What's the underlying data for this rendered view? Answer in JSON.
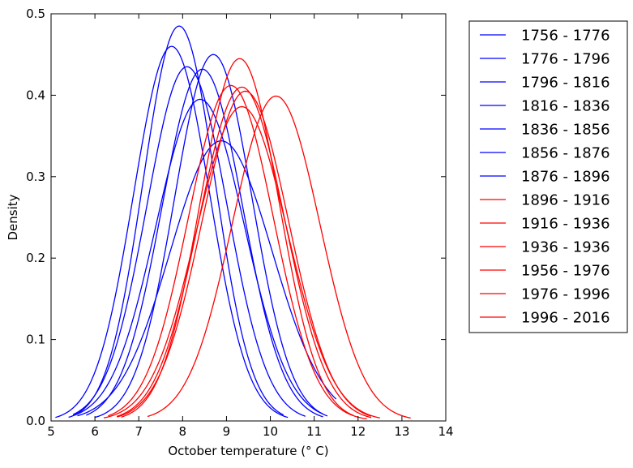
{
  "chart_data": {
    "type": "line",
    "xlabel": "October temperature (° C)",
    "ylabel": "Density",
    "xlim": [
      5,
      14
    ],
    "ylim": [
      0,
      0.5
    ],
    "xticks": [
      "5",
      "6",
      "7",
      "8",
      "9",
      "10",
      "11",
      "12",
      "13",
      "14"
    ],
    "yticks": [
      "0.0",
      "0.1",
      "0.2",
      "0.3",
      "0.4",
      "0.5"
    ],
    "grid": false,
    "legend_position": "outside-right",
    "colors": {
      "early": "#0000ff",
      "late": "#ff0000"
    },
    "series": [
      {
        "name": "1756 - 1776",
        "color": "#0000ff",
        "peak_x": 7.75,
        "peak_density": 0.46,
        "range": [
          5.1,
          10.4
        ]
      },
      {
        "name": "1776 - 1796",
        "color": "#0000ff",
        "peak_x": 7.92,
        "peak_density": 0.485,
        "range": [
          5.4,
          10.3
        ]
      },
      {
        "name": "1796 - 1816",
        "color": "#0000ff",
        "peak_x": 8.1,
        "peak_density": 0.435,
        "range": [
          5.5,
          10.8
        ]
      },
      {
        "name": "1816 - 1836",
        "color": "#0000ff",
        "peak_x": 8.45,
        "peak_density": 0.432,
        "range": [
          5.8,
          11.2
        ]
      },
      {
        "name": "1836 - 1856",
        "color": "#0000ff",
        "peak_x": 8.7,
        "peak_density": 0.45,
        "range": [
          6.0,
          11.3
        ]
      },
      {
        "name": "1856 - 1876",
        "color": "#0000ff",
        "peak_x": 8.4,
        "peak_density": 0.395,
        "range": [
          5.5,
          11.2
        ]
      },
      {
        "name": "1876 - 1896",
        "color": "#0000ff",
        "peak_x": 8.88,
        "peak_density": 0.344,
        "range": [
          5.6,
          11.5
        ]
      },
      {
        "name": "1896 - 1916",
        "color": "#ff0000",
        "peak_x": 9.3,
        "peak_density": 0.445,
        "range": [
          6.6,
          11.9
        ]
      },
      {
        "name": "1916 - 1936",
        "color": "#ff0000",
        "peak_x": 9.1,
        "peak_density": 0.412,
        "range": [
          6.3,
          12.2
        ]
      },
      {
        "name": "1936 - 1936",
        "color": "#ff0000",
        "peak_x": 9.35,
        "peak_density": 0.41,
        "range": [
          6.5,
          12.3
        ]
      },
      {
        "name": "1956 - 1976",
        "color": "#ff0000",
        "peak_x": 9.43,
        "peak_density": 0.405,
        "range": [
          6.5,
          12.3
        ]
      },
      {
        "name": "1976 - 1996",
        "color": "#ff0000",
        "peak_x": 9.35,
        "peak_density": 0.386,
        "range": [
          6.2,
          12.5
        ]
      },
      {
        "name": "1996 - 2016",
        "color": "#ff0000",
        "peak_x": 10.13,
        "peak_density": 0.399,
        "range": [
          7.2,
          13.2
        ]
      }
    ]
  }
}
